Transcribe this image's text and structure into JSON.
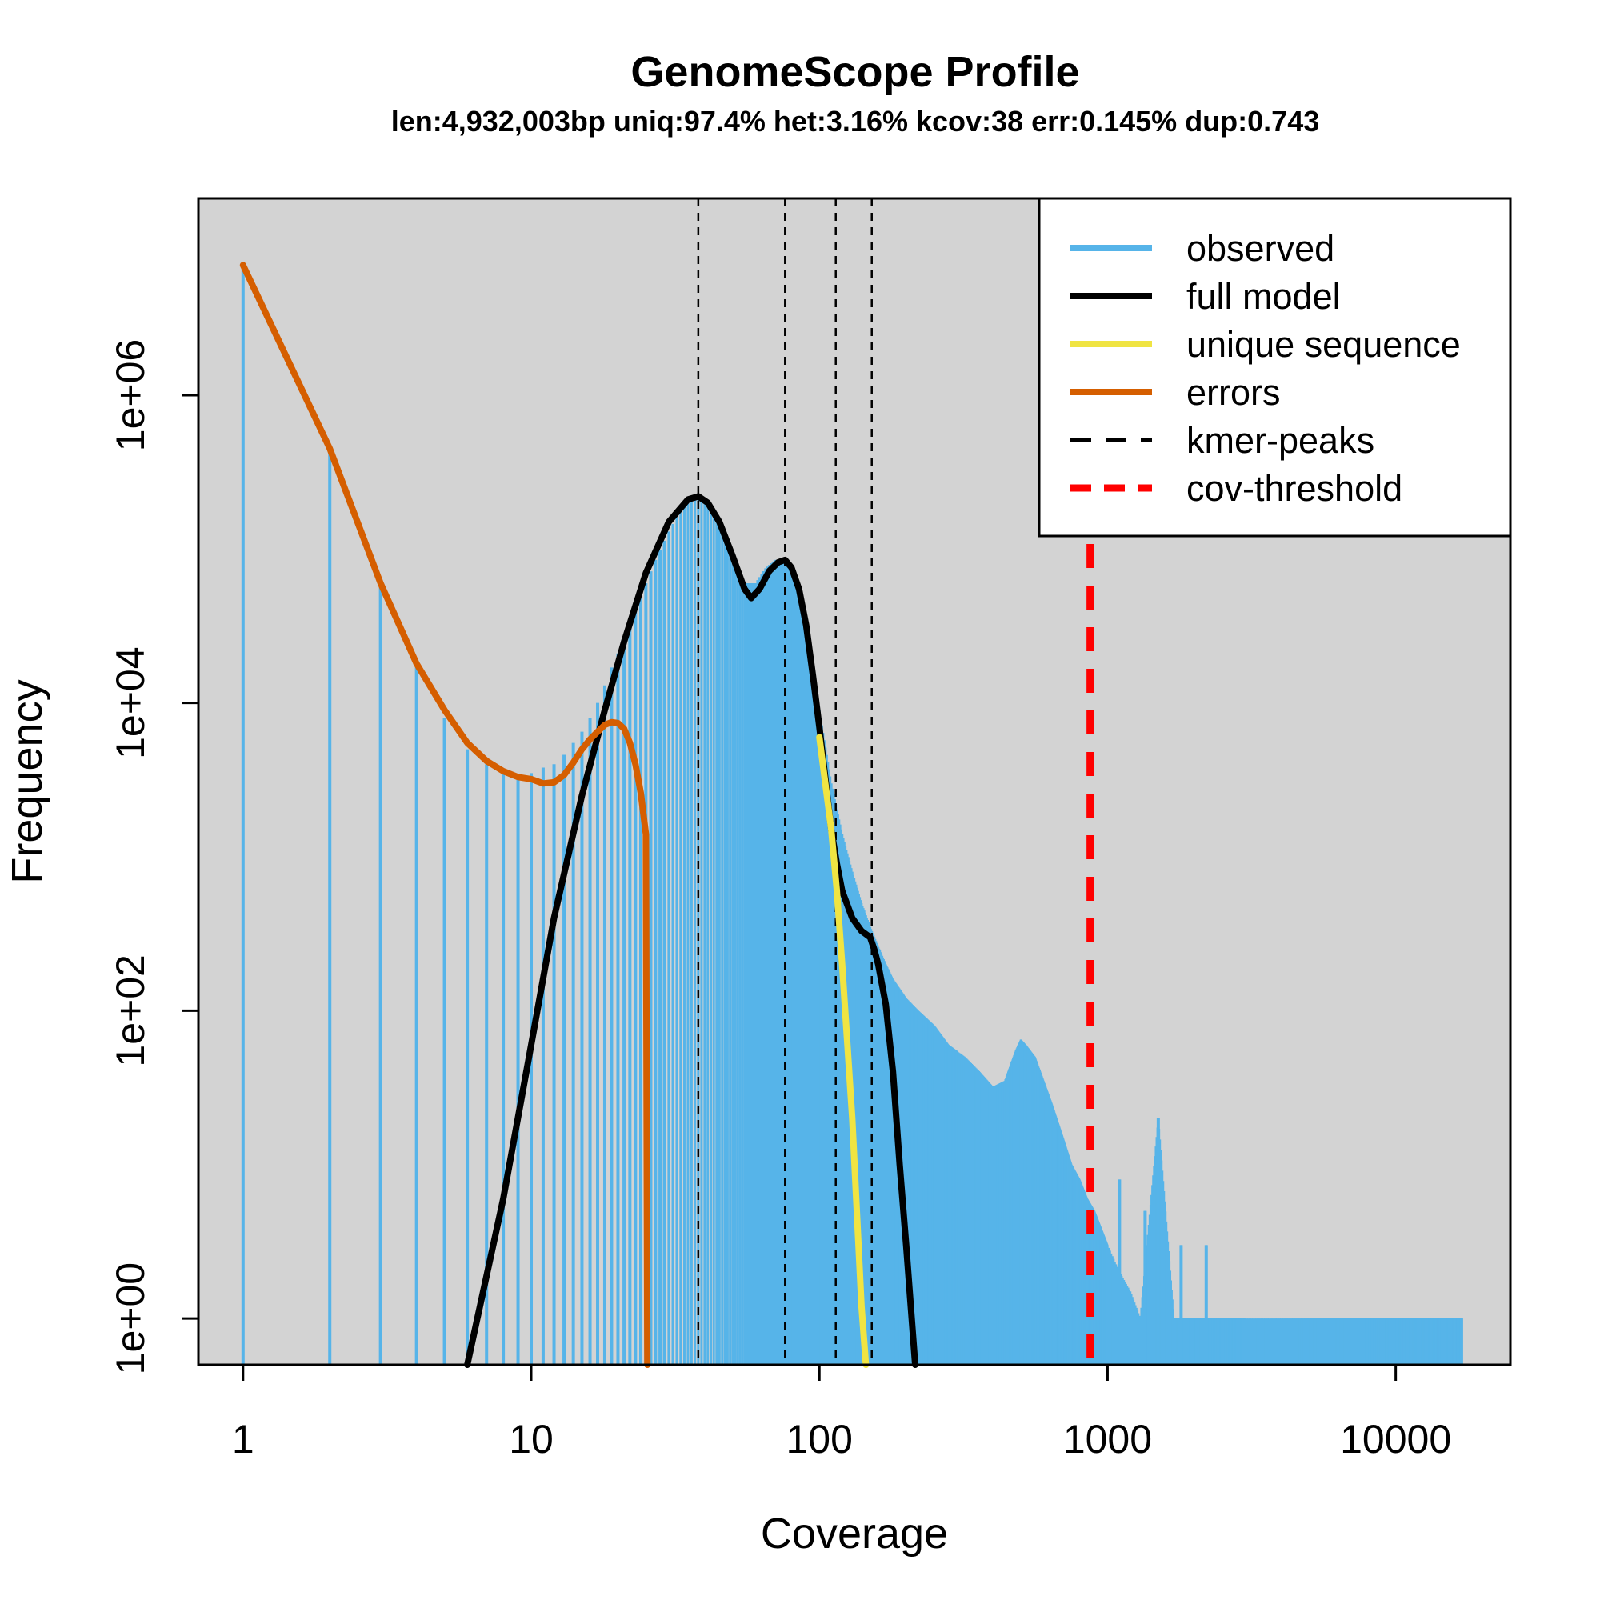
{
  "chart_data": {
    "type": "bar",
    "title": "GenomeScope Profile",
    "subtitle": "len:4,932,003bp uniq:97.4% het:3.16% kcov:38 err:0.145% dup:0.743",
    "xlabel": "Coverage",
    "ylabel": "Frequency",
    "x_scale": "log",
    "y_scale": "log",
    "xlim": [
      0.7,
      25000
    ],
    "ylim": [
      0.5,
      19000000
    ],
    "x_ticks": [
      1,
      10,
      100,
      1000,
      10000
    ],
    "x_tick_labels": [
      "1",
      "10",
      "100",
      "1000",
      "10000"
    ],
    "y_ticks": [
      1,
      100,
      10000,
      1000000
    ],
    "y_tick_labels": [
      "1e+00",
      "1e+02",
      "1e+04",
      "1e+06"
    ],
    "background": "#d3d3d3",
    "grid": false,
    "legend_position": "top-right",
    "legend": [
      {
        "label": "observed",
        "color": "#56b4e9",
        "style": "solid"
      },
      {
        "label": "full model",
        "color": "#000000",
        "style": "solid"
      },
      {
        "label": "unique sequence",
        "color": "#f0e442",
        "style": "solid"
      },
      {
        "label": "errors",
        "color": "#d55e00",
        "style": "solid"
      },
      {
        "label": "kmer-peaks",
        "color": "#000000",
        "style": "dashed"
      },
      {
        "label": "cov-threshold",
        "color": "#ff0000",
        "style": "dashed"
      }
    ],
    "observed": {
      "name": "observed",
      "color": "#56b4e9",
      "points": [
        [
          1,
          7000000
        ],
        [
          2,
          450000
        ],
        [
          3,
          60000
        ],
        [
          4,
          18000
        ],
        [
          5,
          8000
        ],
        [
          6,
          5000
        ],
        [
          7,
          4000
        ],
        [
          8,
          3600
        ],
        [
          9,
          3400
        ],
        [
          10,
          3500
        ],
        [
          11,
          3800
        ],
        [
          12,
          4000
        ],
        [
          13,
          4600
        ],
        [
          14,
          5500
        ],
        [
          15,
          6500
        ],
        [
          16,
          8000
        ],
        [
          17,
          10000
        ],
        [
          18,
          13000
        ],
        [
          19,
          17000
        ],
        [
          20,
          21000
        ],
        [
          21,
          26000
        ],
        [
          22,
          32000
        ],
        [
          23,
          40000
        ],
        [
          24,
          48000
        ],
        [
          25,
          60000
        ],
        [
          27,
          85000
        ],
        [
          30,
          130000
        ],
        [
          33,
          180000
        ],
        [
          36,
          210000
        ],
        [
          38,
          220000
        ],
        [
          41,
          200000
        ],
        [
          45,
          150000
        ],
        [
          50,
          90000
        ],
        [
          55,
          60000
        ],
        [
          60,
          60000
        ],
        [
          65,
          75000
        ],
        [
          70,
          85000
        ],
        [
          76,
          85000
        ],
        [
          82,
          65000
        ],
        [
          88,
          35000
        ],
        [
          95,
          15000
        ],
        [
          100,
          9000
        ],
        [
          110,
          3000
        ],
        [
          120,
          1400
        ],
        [
          130,
          800
        ],
        [
          140,
          500
        ],
        [
          150,
          350
        ],
        [
          160,
          260
        ],
        [
          170,
          200
        ],
        [
          180,
          160
        ],
        [
          200,
          120
        ],
        [
          220,
          100
        ],
        [
          250,
          80
        ],
        [
          280,
          60
        ],
        [
          320,
          50
        ],
        [
          360,
          40
        ],
        [
          400,
          32
        ],
        [
          440,
          35
        ],
        [
          480,
          55
        ],
        [
          500,
          65
        ],
        [
          520,
          60
        ],
        [
          560,
          50
        ],
        [
          600,
          35
        ],
        [
          640,
          25
        ],
        [
          700,
          15
        ],
        [
          750,
          10
        ],
        [
          800,
          8
        ],
        [
          850,
          6
        ],
        [
          900,
          5
        ],
        [
          1000,
          3
        ],
        [
          1100,
          2
        ],
        [
          1200,
          1.5
        ],
        [
          1300,
          1
        ],
        [
          1500,
          20
        ],
        [
          1700,
          1
        ],
        [
          2000,
          1
        ],
        [
          2300,
          1
        ],
        [
          3000,
          1
        ],
        [
          4000,
          1
        ],
        [
          5000,
          1
        ],
        [
          7000,
          1
        ],
        [
          10000,
          1
        ],
        [
          13000,
          1
        ],
        [
          17000,
          1
        ]
      ],
      "notable_spikes": [
        [
          1100,
          8
        ],
        [
          1350,
          5
        ],
        [
          1500,
          20
        ],
        [
          1800,
          3
        ],
        [
          2200,
          3
        ]
      ]
    },
    "series": [
      {
        "name": "full model",
        "color": "#000000",
        "x": [
          6,
          8,
          10,
          12,
          15,
          18,
          21,
          25,
          30,
          35,
          38,
          41,
          45,
          50,
          55,
          58,
          62,
          67,
          72,
          76,
          80,
          85,
          90,
          95,
          100,
          110,
          115,
          120,
          130,
          140,
          150,
          155,
          160,
          170,
          180,
          190,
          200,
          210,
          215
        ],
        "y": [
          0.5,
          6,
          60,
          400,
          2500,
          9000,
          25000,
          70000,
          150000,
          210000,
          220000,
          200000,
          150000,
          90000,
          55000,
          48000,
          55000,
          72000,
          82000,
          85000,
          76000,
          55000,
          32000,
          15000,
          7000,
          1500,
          900,
          600,
          400,
          330,
          300,
          250,
          200,
          110,
          40,
          10,
          3,
          0.9,
          0.5
        ]
      },
      {
        "name": "unique sequence",
        "color": "#f0e442",
        "x": [
          100,
          110,
          115,
          120,
          130,
          140,
          145
        ],
        "y": [
          6000,
          1500,
          600,
          200,
          20,
          1.2,
          0.5
        ]
      },
      {
        "name": "errors",
        "color": "#d55e00",
        "x": [
          1,
          2,
          3,
          4,
          5,
          6,
          7,
          8,
          9,
          10,
          11,
          12,
          13,
          14,
          15,
          16,
          17,
          18,
          19,
          20,
          21,
          22,
          23,
          24,
          25,
          25.3
        ],
        "y": [
          7000000,
          450000,
          60000,
          18000,
          9000,
          5500,
          4200,
          3600,
          3300,
          3200,
          3000,
          3050,
          3400,
          4100,
          5000,
          5800,
          6500,
          7200,
          7500,
          7400,
          6800,
          5500,
          4000,
          2600,
          1400,
          0.5
        ]
      }
    ],
    "kmer_peaks": [
      38,
      76,
      114,
      152
    ],
    "cov_threshold": 870
  }
}
